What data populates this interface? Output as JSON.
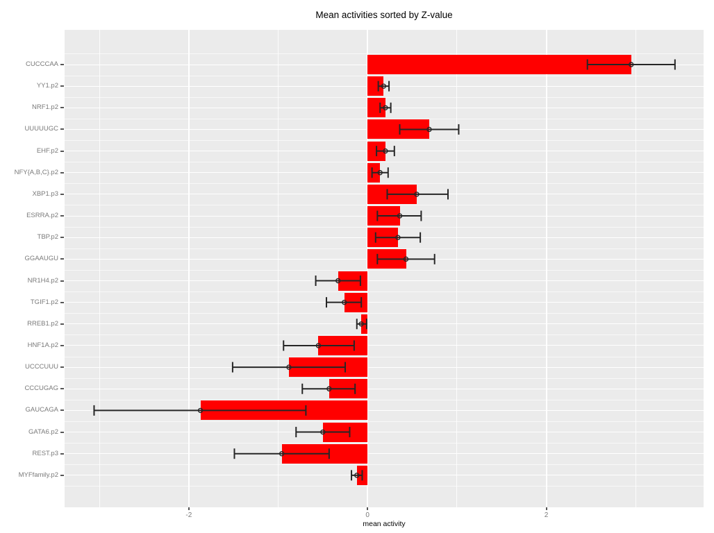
{
  "chart_data": {
    "type": "bar",
    "orientation": "horizontal",
    "title": "Mean activities sorted by Z-value",
    "xlabel": "mean activity",
    "ylabel": "",
    "categories": [
      "CUCCCAA",
      "YY1.p2",
      "NRF1.p2",
      "UUUUUGC",
      "EHF.p2",
      "NFY{A,B,C}.p2",
      "XBP1.p3",
      "ESRRA.p2",
      "TBP.p2",
      "GGAAUGU",
      "NR1H4.p2",
      "TGIF1.p2",
      "RREB1.p2",
      "HNF1A.p2",
      "UCCCUUU",
      "CCCUGAG",
      "GAUCAGA",
      "GATA6.p2",
      "REST.p3",
      "MYFfamily.p2"
    ],
    "values": [
      2.95,
      0.18,
      0.2,
      0.69,
      0.2,
      0.14,
      0.55,
      0.36,
      0.34,
      0.43,
      -0.33,
      -0.26,
      -0.07,
      -0.55,
      -0.88,
      -0.43,
      -1.87,
      -0.5,
      -0.96,
      -0.12
    ],
    "error_low": [
      2.46,
      0.12,
      0.14,
      0.36,
      0.1,
      0.05,
      0.22,
      0.11,
      0.09,
      0.11,
      -0.58,
      -0.46,
      -0.12,
      -0.94,
      -1.51,
      -0.73,
      -3.06,
      -0.8,
      -1.49,
      -0.18
    ],
    "error_high": [
      3.44,
      0.24,
      0.26,
      1.02,
      0.3,
      0.23,
      0.9,
      0.6,
      0.59,
      0.75,
      -0.08,
      -0.07,
      -0.01,
      -0.15,
      -0.25,
      -0.14,
      -0.69,
      -0.2,
      -0.43,
      -0.06
    ],
    "x_ticks": [
      -2,
      0,
      2
    ],
    "x_tick_labels": [
      "-2",
      "0",
      "2"
    ],
    "x_minor_gridlines": [
      -3,
      -1,
      1,
      3
    ],
    "xlim": [
      -3.39,
      3.76
    ],
    "grid": true,
    "legend": "none",
    "bar_color": "#FF0000",
    "error_color": "#262626",
    "panel_bg": "#EBEBEB",
    "gridline_color": "#FFFFFF",
    "tick_label_color": "#7A7A7A",
    "title_color": "#000000"
  }
}
